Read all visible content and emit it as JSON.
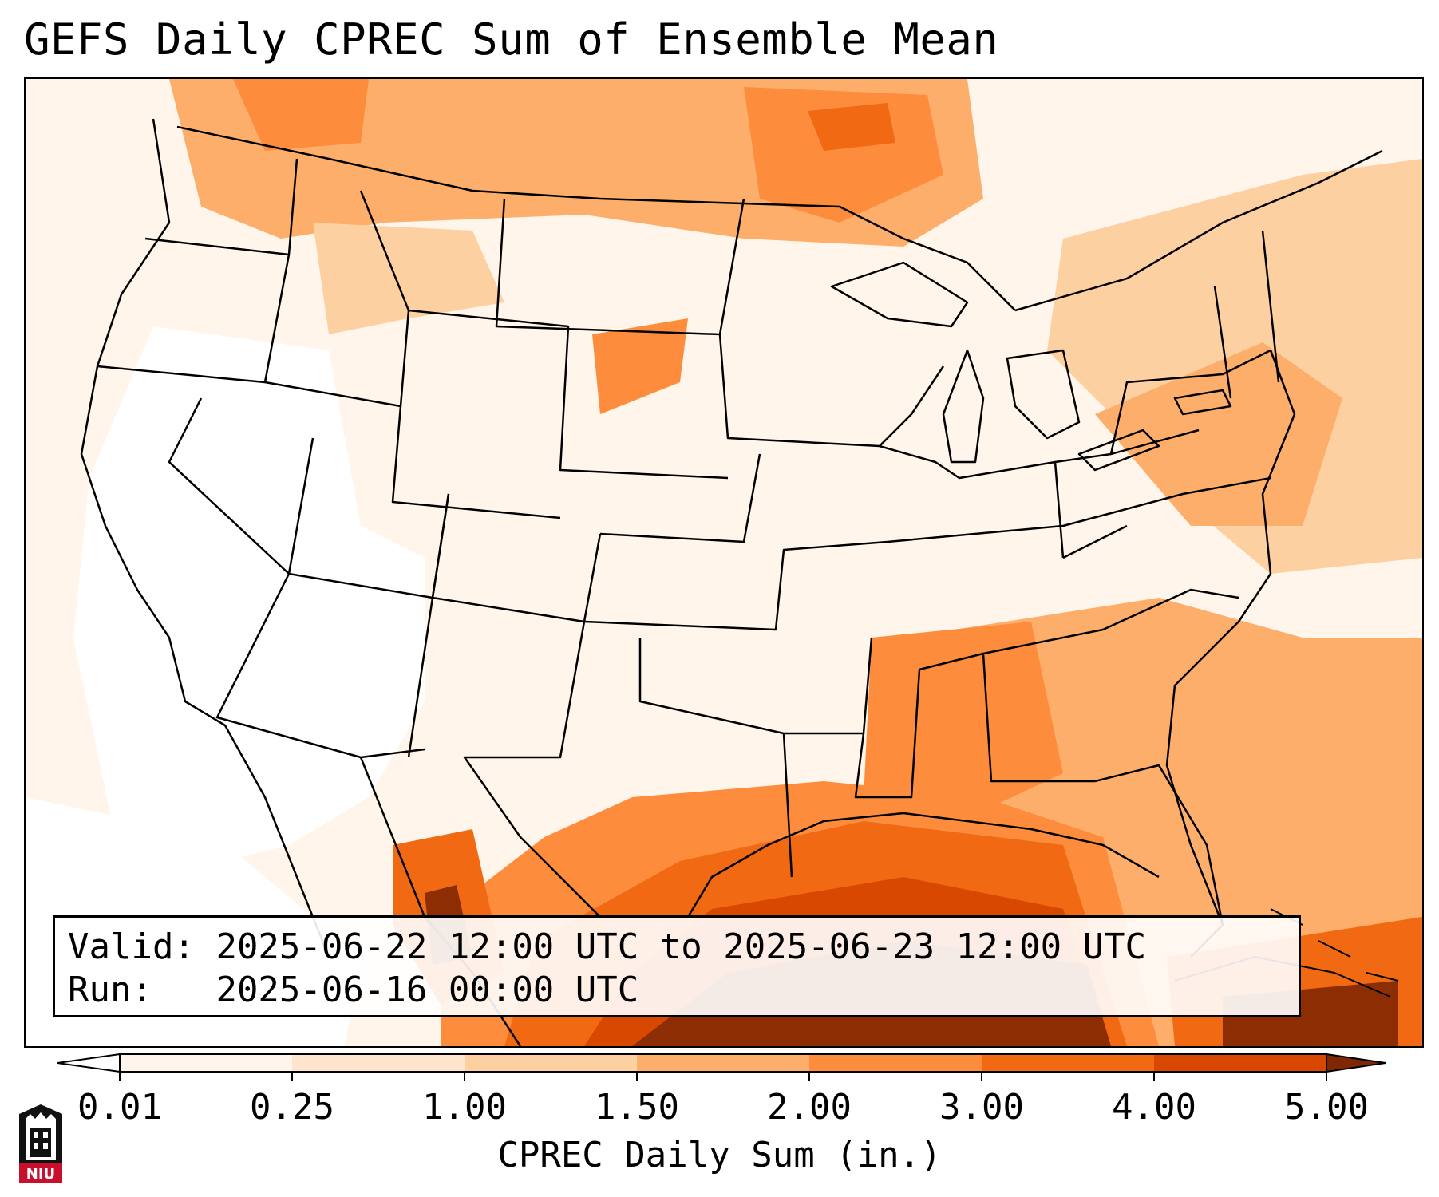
{
  "title": "GEFS Daily CPREC Sum of Ensemble Mean",
  "info": {
    "valid_label": "Valid:",
    "valid_value": "2025-06-22 12:00 UTC to 2025-06-23 12:00 UTC",
    "run_label": "Run:",
    "run_value": "2025-06-16 00:00 UTC"
  },
  "colorbar": {
    "label": "CPREC Daily Sum (in.)",
    "ticks": [
      "0.01",
      "0.25",
      "1.00",
      "1.50",
      "2.00",
      "3.00",
      "4.00",
      "5.00"
    ],
    "colors": [
      "#fff5eb",
      "#fee6ce",
      "#fdd0a2",
      "#fdae6b",
      "#fd8d3c",
      "#f16913",
      "#d94801",
      "#8c2d04"
    ],
    "under_color": "#ffffff",
    "over_color": "#7f2704"
  },
  "logo": {
    "text": "NIU"
  }
}
